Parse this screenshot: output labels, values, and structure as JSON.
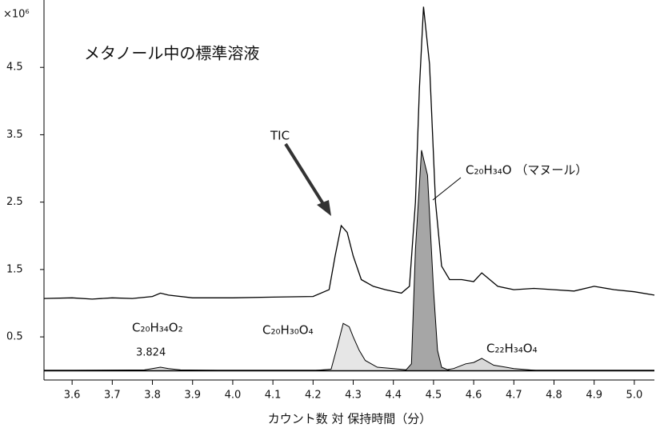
{
  "chart_data": {
    "type": "area",
    "title": "メタノール中の標準溶液",
    "x_label": "カウント数 対 保持時間（分）",
    "y_unit": "×10⁶",
    "annotation": "3.824",
    "xlim": [
      3.53,
      5.05
    ],
    "ylim": [
      -0.14,
      5.5
    ],
    "xticks": [
      3.6,
      3.7,
      3.8,
      3.9,
      {
        "value": 4,
        "label": "4.0"
      },
      4.1,
      4.2,
      4.3,
      4.4,
      4.5,
      4.6,
      4.7,
      4.8,
      4.9,
      {
        "value": 5,
        "label": "5.0"
      }
    ],
    "yticks": [
      0.5,
      1.5,
      2.5,
      3.5,
      4.5
    ],
    "series": [
      {
        "name": "C₂₀H₃₄O₂",
        "color": "#d9d9d9",
        "x": [
          3.53,
          3.78,
          3.8,
          3.82,
          3.84,
          3.87,
          4.0
        ],
        "values": [
          0.0,
          0.01,
          0.03,
          0.05,
          0.03,
          0.01,
          0.0
        ]
      },
      {
        "name": "C₂₀H₃₀O₄",
        "color": "#e6e6e6",
        "x": [
          4.2,
          4.245,
          4.26,
          4.275,
          4.29,
          4.3,
          4.315,
          4.33,
          4.36,
          4.4,
          4.45
        ],
        "values": [
          0.0,
          0.02,
          0.35,
          0.7,
          0.65,
          0.5,
          0.3,
          0.15,
          0.05,
          0.03,
          0.0
        ]
      },
      {
        "name": "C₂₂H₃₄O₄",
        "color": "#d9d9d9",
        "x": [
          4.52,
          4.55,
          4.58,
          4.6,
          4.62,
          4.65,
          4.7,
          4.76
        ],
        "values": [
          0.0,
          0.03,
          0.1,
          0.12,
          0.18,
          0.08,
          0.03,
          0.0
        ]
      },
      {
        "name": "C₂₀H₃₄O （マヌール）",
        "color": "#a6a6a6",
        "x": [
          4.43,
          4.445,
          4.455,
          4.47,
          4.485,
          4.5,
          4.51,
          4.52,
          4.54
        ],
        "values": [
          0.0,
          0.1,
          1.8,
          3.27,
          2.9,
          1.2,
          0.3,
          0.05,
          0.0
        ]
      },
      {
        "name": "TIC",
        "color": "#000000",
        "x": [
          3.53,
          3.6,
          3.65,
          3.7,
          3.75,
          3.8,
          3.82,
          3.84,
          3.9,
          4.0,
          4.1,
          4.2,
          4.24,
          4.255,
          4.27,
          4.285,
          4.3,
          4.32,
          4.35,
          4.38,
          4.42,
          4.44,
          4.455,
          4.465,
          4.475,
          4.49,
          4.505,
          4.52,
          4.54,
          4.57,
          4.6,
          4.62,
          4.66,
          4.7,
          4.75,
          4.8,
          4.85,
          4.9,
          4.95,
          5.0,
          5.05
        ],
        "values": [
          1.07,
          1.08,
          1.06,
          1.08,
          1.07,
          1.1,
          1.15,
          1.12,
          1.08,
          1.08,
          1.09,
          1.1,
          1.2,
          1.7,
          2.15,
          2.05,
          1.7,
          1.35,
          1.25,
          1.2,
          1.15,
          1.25,
          2.5,
          4.2,
          5.4,
          4.55,
          2.5,
          1.55,
          1.35,
          1.35,
          1.32,
          1.45,
          1.25,
          1.2,
          1.22,
          1.2,
          1.18,
          1.25,
          1.2,
          1.17,
          1.12
        ]
      }
    ]
  }
}
